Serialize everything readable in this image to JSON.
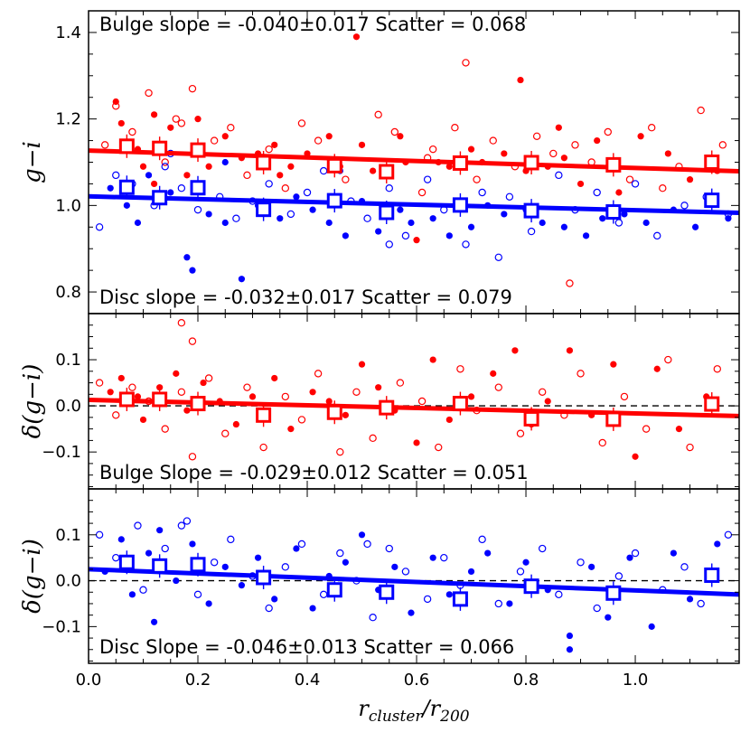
{
  "colors": {
    "bulge": "#ff0000",
    "disc": "#0000ff",
    "axis": "#000000"
  },
  "chart_data": [
    {
      "type": "scatter",
      "title": "",
      "xlabel": "",
      "ylabel": "g−i",
      "xlim": [
        0.0,
        1.19
      ],
      "ylim": [
        0.75,
        1.45
      ],
      "yticks": [
        0.8,
        1.0,
        1.2,
        1.4
      ],
      "ytick_labels": [
        "0.8",
        "1.0",
        "1.2",
        "1.4"
      ],
      "annotations": {
        "top": "Bulge slope = -0.040±0.017   Scatter = 0.068",
        "bottom": "Disc slope = -0.032±0.017     Scatter = 0.079"
      },
      "series": [
        {
          "name": "Bulge fit",
          "kind": "line",
          "color": "#ff0000",
          "x": [
            0.0,
            1.19
          ],
          "y": [
            1.127,
            1.079
          ]
        },
        {
          "name": "Disc fit",
          "kind": "line",
          "color": "#0000ff",
          "x": [
            0.0,
            1.19
          ],
          "y": [
            1.021,
            0.983
          ]
        },
        {
          "name": "Bulge binned",
          "kind": "square",
          "color": "#ff0000",
          "x": [
            0.07,
            0.13,
            0.2,
            0.32,
            0.45,
            0.545,
            0.68,
            0.81,
            0.96,
            1.14
          ],
          "y": [
            1.137,
            1.132,
            1.128,
            1.099,
            1.092,
            1.078,
            1.098,
            1.099,
            1.094,
            1.1
          ]
        },
        {
          "name": "Disc binned",
          "kind": "square",
          "color": "#0000ff",
          "x": [
            0.07,
            0.13,
            0.2,
            0.32,
            0.45,
            0.545,
            0.68,
            0.81,
            0.96,
            1.14
          ],
          "y": [
            1.042,
            1.018,
            1.041,
            0.991,
            1.011,
            0.984,
            1.001,
            0.988,
            0.985,
            1.012
          ]
        },
        {
          "name": "Bulge filled",
          "kind": "filled",
          "color": "#ff0000",
          "x": [
            0.05,
            0.06,
            0.09,
            0.1,
            0.12,
            0.15,
            0.18,
            0.2,
            0.22,
            0.25,
            0.28,
            0.31,
            0.34,
            0.37,
            0.4,
            0.44,
            0.46,
            0.49,
            0.5,
            0.52,
            0.54,
            0.57,
            0.6,
            0.64,
            0.66,
            0.7,
            0.72,
            0.76,
            0.79,
            0.8,
            0.84,
            0.87,
            0.9,
            0.93,
            0.97,
            1.01,
            1.06,
            1.1,
            1.15,
            0.12,
            0.35,
            0.58,
            0.86
          ],
          "y": [
            1.24,
            1.19,
            1.13,
            1.09,
            1.21,
            1.18,
            1.07,
            1.2,
            1.09,
            1.16,
            1.11,
            1.12,
            1.14,
            1.09,
            1.12,
            1.16,
            1.09,
            1.39,
            1.14,
            1.08,
            1.07,
            1.16,
            0.92,
            1.1,
            1.09,
            1.13,
            1.1,
            1.12,
            1.29,
            1.08,
            1.09,
            1.11,
            1.05,
            1.15,
            1.03,
            1.16,
            1.12,
            1.06,
            1.08,
            1.05,
            1.07,
            1.1,
            1.18
          ]
        },
        {
          "name": "Bulge open",
          "kind": "open",
          "color": "#ff0000",
          "x": [
            0.03,
            0.05,
            0.08,
            0.11,
            0.14,
            0.16,
            0.19,
            0.23,
            0.26,
            0.29,
            0.33,
            0.36,
            0.39,
            0.42,
            0.47,
            0.53,
            0.56,
            0.61,
            0.63,
            0.67,
            0.69,
            0.71,
            0.74,
            0.78,
            0.82,
            0.85,
            0.88,
            0.92,
            0.95,
            0.99,
            1.03,
            1.08,
            1.12,
            1.16,
            0.17,
            0.62,
            0.89,
            1.05
          ],
          "y": [
            1.14,
            1.23,
            1.17,
            1.26,
            1.1,
            1.2,
            1.27,
            1.15,
            1.18,
            1.07,
            1.13,
            1.04,
            1.19,
            1.15,
            1.06,
            1.21,
            1.17,
            1.03,
            1.13,
            1.18,
            1.33,
            1.06,
            1.15,
            1.09,
            1.16,
            1.12,
            0.82,
            1.1,
            1.17,
            1.06,
            1.18,
            1.09,
            1.22,
            1.14,
            1.19,
            1.11,
            1.14,
            1.04
          ]
        },
        {
          "name": "Disc filled",
          "kind": "filled",
          "color": "#0000ff",
          "x": [
            0.04,
            0.07,
            0.09,
            0.11,
            0.15,
            0.18,
            0.19,
            0.22,
            0.25,
            0.28,
            0.31,
            0.35,
            0.38,
            0.41,
            0.44,
            0.47,
            0.5,
            0.53,
            0.57,
            0.59,
            0.63,
            0.66,
            0.7,
            0.73,
            0.76,
            0.8,
            0.83,
            0.87,
            0.91,
            0.94,
            0.98,
            1.02,
            1.07,
            1.11,
            1.17,
            0.25,
            0.46
          ],
          "y": [
            1.04,
            1.0,
            0.96,
            1.07,
            1.03,
            0.88,
            0.85,
            0.98,
            0.96,
            0.83,
            1.0,
            0.97,
            1.02,
            0.99,
            0.96,
            0.93,
            1.01,
            0.94,
            0.99,
            0.96,
            0.97,
            0.93,
            0.95,
            1.0,
            0.98,
            0.99,
            0.96,
            0.95,
            0.93,
            0.97,
            0.98,
            0.96,
            0.99,
            0.95,
            0.97,
            1.1,
            1.08
          ]
        },
        {
          "name": "Disc open",
          "kind": "open",
          "color": "#0000ff",
          "x": [
            0.02,
            0.05,
            0.08,
            0.12,
            0.14,
            0.17,
            0.2,
            0.24,
            0.27,
            0.3,
            0.33,
            0.37,
            0.4,
            0.43,
            0.48,
            0.51,
            0.55,
            0.58,
            0.62,
            0.65,
            0.69,
            0.72,
            0.75,
            0.77,
            0.81,
            0.86,
            0.89,
            0.93,
            0.97,
            1.0,
            1.04,
            1.09,
            1.13,
            1.17,
            0.15,
            0.55
          ],
          "y": [
            0.95,
            1.07,
            1.05,
            1.0,
            1.09,
            1.04,
            0.99,
            1.02,
            0.97,
            1.01,
            1.05,
            0.98,
            1.03,
            1.08,
            1.01,
            0.97,
            1.04,
            0.93,
            1.06,
            0.99,
            0.91,
            1.03,
            0.88,
            1.02,
            0.94,
            1.07,
            0.99,
            1.03,
            0.96,
            1.05,
            0.93,
            1.0,
            1.02,
            0.98,
            1.12,
            0.91
          ]
        }
      ]
    },
    {
      "type": "scatter",
      "title": "",
      "xlabel": "",
      "ylabel": "δ(g−i)",
      "xlim": [
        0.0,
        1.19
      ],
      "ylim": [
        -0.18,
        0.2
      ],
      "yticks": [
        -0.1,
        0.0,
        0.1
      ],
      "ytick_labels": [
        "−0.1",
        "0.0",
        "0.1"
      ],
      "annotations": {
        "bottom": "Bulge Slope = -0.029±0.012  Scatter = 0.051"
      },
      "series": [
        {
          "name": "Zero line",
          "kind": "dashed",
          "color": "#000000",
          "x": [
            0.0,
            1.19
          ],
          "y": [
            0.0,
            0.0
          ]
        },
        {
          "name": "Bulge fit",
          "kind": "line",
          "color": "#ff0000",
          "x": [
            0.0,
            1.19
          ],
          "y": [
            0.013,
            -0.022
          ]
        },
        {
          "name": "Bulge binned",
          "kind": "square",
          "color": "#ff0000",
          "x": [
            0.07,
            0.13,
            0.2,
            0.32,
            0.45,
            0.545,
            0.68,
            0.81,
            0.96,
            1.14
          ],
          "y": [
            0.014,
            0.014,
            0.005,
            -0.02,
            -0.014,
            -0.004,
            0.005,
            -0.028,
            -0.029,
            0.004
          ]
        },
        {
          "name": "Bulge filled",
          "kind": "filled",
          "color": "#ff0000",
          "x": [
            0.04,
            0.06,
            0.09,
            0.1,
            0.13,
            0.16,
            0.18,
            0.21,
            0.24,
            0.27,
            0.3,
            0.34,
            0.37,
            0.41,
            0.44,
            0.47,
            0.5,
            0.53,
            0.56,
            0.6,
            0.63,
            0.66,
            0.7,
            0.74,
            0.78,
            0.81,
            0.84,
            0.88,
            0.92,
            0.96,
            1.0,
            1.04,
            1.08,
            1.13
          ],
          "y": [
            0.03,
            0.06,
            0.02,
            -0.03,
            0.04,
            0.07,
            -0.01,
            0.05,
            0.01,
            -0.04,
            0.02,
            0.06,
            -0.05,
            0.03,
            0.01,
            -0.02,
            0.09,
            0.04,
            -0.01,
            -0.08,
            0.1,
            -0.03,
            0.02,
            0.07,
            0.12,
            -0.04,
            0.01,
            0.12,
            -0.02,
            0.09,
            -0.11,
            0.08,
            -0.05,
            0.02
          ]
        },
        {
          "name": "Bulge open",
          "kind": "open",
          "color": "#ff0000",
          "x": [
            0.02,
            0.05,
            0.08,
            0.11,
            0.14,
            0.17,
            0.19,
            0.22,
            0.25,
            0.29,
            0.32,
            0.36,
            0.39,
            0.42,
            0.46,
            0.49,
            0.52,
            0.57,
            0.61,
            0.64,
            0.68,
            0.71,
            0.75,
            0.79,
            0.83,
            0.87,
            0.9,
            0.94,
            0.98,
            1.02,
            1.06,
            1.1,
            1.15,
            0.17,
            0.19
          ],
          "y": [
            0.05,
            -0.02,
            0.04,
            0.01,
            -0.05,
            0.03,
            -0.11,
            0.06,
            -0.06,
            0.04,
            -0.09,
            0.02,
            -0.03,
            0.07,
            -0.1,
            0.03,
            -0.07,
            0.05,
            0.01,
            -0.09,
            0.08,
            -0.01,
            0.04,
            -0.06,
            0.03,
            -0.02,
            0.07,
            -0.08,
            0.02,
            -0.05,
            0.1,
            -0.09,
            0.08,
            0.18,
            0.14
          ]
        }
      ]
    },
    {
      "type": "scatter",
      "title": "",
      "xlabel": "r_cluster / r_200",
      "ylabel": "δ(g−i)",
      "xlim": [
        0.0,
        1.19
      ],
      "ylim": [
        -0.18,
        0.2
      ],
      "xticks": [
        0.0,
        0.2,
        0.4,
        0.6,
        0.8,
        1.0
      ],
      "xtick_labels": [
        "0.0",
        "0.2",
        "0.4",
        "0.6",
        "0.8",
        "1.0"
      ],
      "yticks": [
        -0.1,
        0.0,
        0.1
      ],
      "ytick_labels": [
        "−0.1",
        "0.0",
        "0.1"
      ],
      "annotations": {
        "bottom": "Disc Slope = -0.046±0.013    Scatter = 0.066"
      },
      "series": [
        {
          "name": "Zero line",
          "kind": "dashed",
          "color": "#000000",
          "x": [
            0.0,
            1.19
          ],
          "y": [
            0.0,
            0.0
          ]
        },
        {
          "name": "Disc fit",
          "kind": "line",
          "color": "#0000ff",
          "x": [
            0.0,
            1.19
          ],
          "y": [
            0.025,
            -0.03
          ]
        },
        {
          "name": "Disc binned",
          "kind": "square",
          "color": "#0000ff",
          "x": [
            0.07,
            0.13,
            0.2,
            0.32,
            0.45,
            0.545,
            0.68,
            0.81,
            0.96,
            1.14
          ],
          "y": [
            0.04,
            0.032,
            0.035,
            0.007,
            -0.02,
            -0.025,
            -0.04,
            -0.012,
            -0.027,
            0.012
          ]
        },
        {
          "name": "Disc filled",
          "kind": "filled",
          "color": "#0000ff",
          "x": [
            0.03,
            0.06,
            0.08,
            0.11,
            0.13,
            0.16,
            0.19,
            0.22,
            0.25,
            0.28,
            0.31,
            0.34,
            0.38,
            0.41,
            0.44,
            0.47,
            0.5,
            0.53,
            0.56,
            0.59,
            0.63,
            0.66,
            0.7,
            0.73,
            0.77,
            0.8,
            0.84,
            0.88,
            0.92,
            0.95,
            0.99,
            1.03,
            1.07,
            1.1,
            1.15,
            0.12,
            0.88
          ],
          "y": [
            0.02,
            0.09,
            -0.03,
            0.06,
            0.11,
            0.0,
            0.08,
            -0.05,
            0.03,
            -0.01,
            0.05,
            -0.04,
            0.07,
            -0.06,
            0.01,
            0.04,
            0.1,
            -0.02,
            0.03,
            -0.07,
            0.05,
            -0.03,
            0.02,
            0.06,
            -0.05,
            0.04,
            -0.02,
            -0.12,
            0.03,
            -0.08,
            0.05,
            -0.1,
            0.06,
            -0.04,
            0.08,
            -0.09,
            -0.15
          ]
        },
        {
          "name": "Disc open",
          "kind": "open",
          "color": "#0000ff",
          "x": [
            0.02,
            0.05,
            0.09,
            0.1,
            0.14,
            0.17,
            0.2,
            0.23,
            0.26,
            0.3,
            0.33,
            0.36,
            0.39,
            0.43,
            0.46,
            0.49,
            0.52,
            0.55,
            0.58,
            0.62,
            0.65,
            0.68,
            0.72,
            0.75,
            0.79,
            0.83,
            0.86,
            0.9,
            0.93,
            0.97,
            1.0,
            1.05,
            1.09,
            1.12,
            1.17,
            0.18,
            0.51
          ],
          "y": [
            0.1,
            0.05,
            0.12,
            -0.02,
            0.07,
            0.12,
            -0.03,
            0.04,
            0.09,
            0.01,
            -0.06,
            0.03,
            0.08,
            -0.03,
            0.06,
            0.0,
            -0.08,
            0.07,
            0.02,
            -0.04,
            0.05,
            -0.01,
            0.09,
            -0.05,
            0.02,
            0.07,
            -0.03,
            0.04,
            -0.06,
            0.01,
            0.06,
            -0.02,
            0.03,
            -0.05,
            0.1,
            0.13,
            0.08
          ]
        }
      ]
    }
  ],
  "x_axis_label": {
    "main": "r",
    "sub1": "cluster",
    "slash": "/",
    "main2": "r",
    "sub2": "200"
  }
}
